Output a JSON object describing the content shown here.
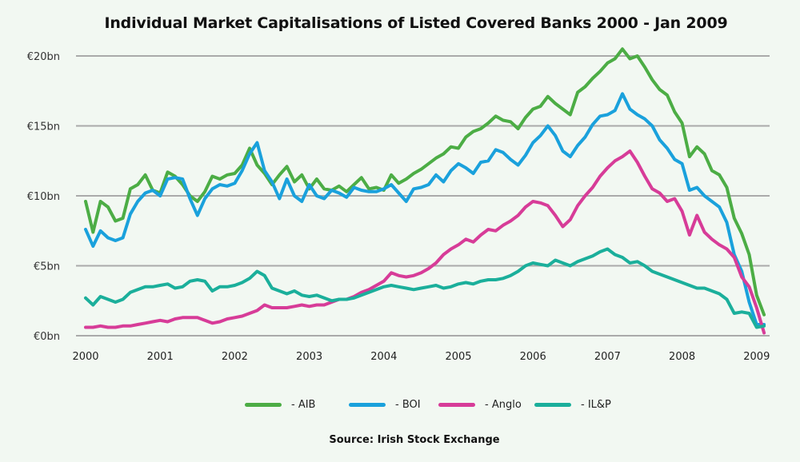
{
  "chart_data": {
    "type": "line",
    "title": "Individual Market Capitalisations of Listed Covered Banks 2000 - Jan 2009",
    "source": "Source: Irish Stock Exchange",
    "xlabel": "",
    "ylabel": "",
    "ylim": [
      0,
      20
    ],
    "xlim": [
      2000,
      2009.15
    ],
    "grid": true,
    "legend_position": "bottom",
    "y_ticks": [
      {
        "value": 0,
        "label": "€0bn"
      },
      {
        "value": 5,
        "label": "€5bn"
      },
      {
        "value": 10,
        "label": "€10bn"
      },
      {
        "value": 15,
        "label": "€15bn"
      },
      {
        "value": 20,
        "label": "€20bn"
      }
    ],
    "x_ticks": [
      {
        "value": 2000,
        "label": "2000"
      },
      {
        "value": 2001,
        "label": "2001"
      },
      {
        "value": 2002,
        "label": "2002"
      },
      {
        "value": 2003,
        "label": "2003"
      },
      {
        "value": 2004,
        "label": "2004"
      },
      {
        "value": 2005,
        "label": "2005"
      },
      {
        "value": 2006,
        "label": "2006"
      },
      {
        "value": 2007,
        "label": "2007"
      },
      {
        "value": 2008,
        "label": "2008"
      },
      {
        "value": 2009,
        "label": "2009"
      }
    ],
    "x": [
      2000.0,
      2000.1,
      2000.2,
      2000.3,
      2000.4,
      2000.5,
      2000.6,
      2000.7,
      2000.8,
      2000.9,
      2001.0,
      2001.1,
      2001.2,
      2001.3,
      2001.4,
      2001.5,
      2001.6,
      2001.7,
      2001.8,
      2001.9,
      2002.0,
      2002.1,
      2002.2,
      2002.3,
      2002.4,
      2002.5,
      2002.6,
      2002.7,
      2002.8,
      2002.9,
      2003.0,
      2003.1,
      2003.2,
      2003.3,
      2003.4,
      2003.5,
      2003.6,
      2003.7,
      2003.8,
      2003.9,
      2004.0,
      2004.1,
      2004.2,
      2004.3,
      2004.4,
      2004.5,
      2004.6,
      2004.7,
      2004.8,
      2004.9,
      2005.0,
      2005.1,
      2005.2,
      2005.3,
      2005.4,
      2005.5,
      2005.6,
      2005.7,
      2005.8,
      2005.9,
      2006.0,
      2006.1,
      2006.2,
      2006.3,
      2006.4,
      2006.5,
      2006.6,
      2006.7,
      2006.8,
      2006.9,
      2007.0,
      2007.1,
      2007.2,
      2007.3,
      2007.4,
      2007.5,
      2007.6,
      2007.7,
      2007.8,
      2007.9,
      2008.0,
      2008.1,
      2008.2,
      2008.3,
      2008.4,
      2008.5,
      2008.6,
      2008.7,
      2008.8,
      2008.9,
      2009.0,
      2009.1
    ],
    "series": [
      {
        "name": "AIB",
        "legend_label": "- AIB",
        "color": "#4cad45",
        "values": [
          9.6,
          7.4,
          9.6,
          9.2,
          8.2,
          8.4,
          10.5,
          10.8,
          11.5,
          10.4,
          10.2,
          11.7,
          11.4,
          10.8,
          10.0,
          9.6,
          10.3,
          11.4,
          11.2,
          11.5,
          11.6,
          12.2,
          13.4,
          12.2,
          11.6,
          10.8,
          11.5,
          12.1,
          11.0,
          11.5,
          10.5,
          11.2,
          10.5,
          10.4,
          10.7,
          10.3,
          10.8,
          11.3,
          10.5,
          10.6,
          10.4,
          11.5,
          10.9,
          11.2,
          11.6,
          11.9,
          12.3,
          12.7,
          13.0,
          13.5,
          13.4,
          14.2,
          14.6,
          14.8,
          15.2,
          15.7,
          15.4,
          15.3,
          14.8,
          15.6,
          16.2,
          16.4,
          17.1,
          16.6,
          16.2,
          15.8,
          17.4,
          17.8,
          18.4,
          18.9,
          19.5,
          19.8,
          20.5,
          19.8,
          20.0,
          19.2,
          18.3,
          17.6,
          17.2,
          16.0,
          15.2,
          12.8,
          13.5,
          13.0,
          11.8,
          11.5,
          10.6,
          8.4,
          7.3,
          5.8,
          2.9,
          1.5
        ]
      },
      {
        "name": "BOI",
        "legend_label": "- BOI",
        "color": "#1aa1dc",
        "values": [
          7.6,
          6.4,
          7.5,
          7.0,
          6.8,
          7.0,
          8.7,
          9.6,
          10.2,
          10.4,
          10.0,
          11.2,
          11.3,
          11.2,
          9.8,
          8.6,
          9.8,
          10.5,
          10.8,
          10.7,
          10.9,
          11.8,
          13.0,
          13.8,
          11.8,
          11.0,
          9.8,
          11.2,
          10.0,
          9.6,
          10.8,
          10.0,
          9.8,
          10.4,
          10.2,
          9.9,
          10.6,
          10.4,
          10.3,
          10.3,
          10.5,
          10.8,
          10.2,
          9.6,
          10.5,
          10.6,
          10.8,
          11.5,
          11.0,
          11.8,
          12.3,
          12.0,
          11.6,
          12.4,
          12.5,
          13.3,
          13.1,
          12.6,
          12.2,
          12.9,
          13.8,
          14.3,
          15.0,
          14.3,
          13.2,
          12.8,
          13.6,
          14.2,
          15.1,
          15.7,
          15.8,
          16.1,
          17.3,
          16.2,
          15.8,
          15.5,
          15.0,
          14.0,
          13.4,
          12.6,
          12.3,
          10.4,
          10.6,
          10.0,
          9.6,
          9.2,
          8.1,
          5.8,
          4.6,
          2.4,
          0.8,
          0.8
        ]
      },
      {
        "name": "Anglo",
        "legend_label": "- Anglo",
        "color": "#d73c98",
        "values": [
          0.6,
          0.6,
          0.7,
          0.6,
          0.6,
          0.7,
          0.7,
          0.8,
          0.9,
          1.0,
          1.1,
          1.0,
          1.2,
          1.3,
          1.3,
          1.3,
          1.1,
          0.9,
          1.0,
          1.2,
          1.3,
          1.4,
          1.6,
          1.8,
          2.2,
          2.0,
          2.0,
          2.0,
          2.1,
          2.2,
          2.1,
          2.2,
          2.2,
          2.4,
          2.6,
          2.6,
          2.8,
          3.1,
          3.3,
          3.6,
          3.9,
          4.5,
          4.3,
          4.2,
          4.3,
          4.5,
          4.8,
          5.2,
          5.8,
          6.2,
          6.5,
          6.9,
          6.7,
          7.2,
          7.6,
          7.5,
          7.9,
          8.2,
          8.6,
          9.2,
          9.6,
          9.5,
          9.3,
          8.6,
          7.8,
          8.3,
          9.3,
          10.0,
          10.6,
          11.4,
          12.0,
          12.5,
          12.8,
          13.2,
          12.4,
          11.4,
          10.5,
          10.2,
          9.6,
          9.8,
          8.9,
          7.2,
          8.6,
          7.4,
          6.9,
          6.5,
          6.2,
          5.6,
          4.2,
          3.5,
          2.0,
          0.2
        ]
      },
      {
        "name": "IL&P",
        "legend_label": "- IL&P",
        "color": "#1baf9b",
        "values": [
          2.7,
          2.2,
          2.8,
          2.6,
          2.4,
          2.6,
          3.1,
          3.3,
          3.5,
          3.5,
          3.6,
          3.7,
          3.4,
          3.5,
          3.9,
          4.0,
          3.9,
          3.2,
          3.5,
          3.5,
          3.6,
          3.8,
          4.1,
          4.6,
          4.3,
          3.4,
          3.2,
          3.0,
          3.2,
          2.9,
          2.8,
          2.9,
          2.7,
          2.5,
          2.6,
          2.6,
          2.7,
          2.9,
          3.1,
          3.3,
          3.5,
          3.6,
          3.5,
          3.4,
          3.3,
          3.4,
          3.5,
          3.6,
          3.4,
          3.5,
          3.7,
          3.8,
          3.7,
          3.9,
          4.0,
          4.0,
          4.1,
          4.3,
          4.6,
          5.0,
          5.2,
          5.1,
          5.0,
          5.4,
          5.2,
          5.0,
          5.3,
          5.5,
          5.7,
          6.0,
          6.2,
          5.8,
          5.6,
          5.2,
          5.3,
          5.0,
          4.6,
          4.4,
          4.2,
          4.0,
          3.8,
          3.6,
          3.4,
          3.4,
          3.2,
          3.0,
          2.6,
          1.6,
          1.7,
          1.6,
          0.6,
          0.7
        ]
      }
    ]
  }
}
